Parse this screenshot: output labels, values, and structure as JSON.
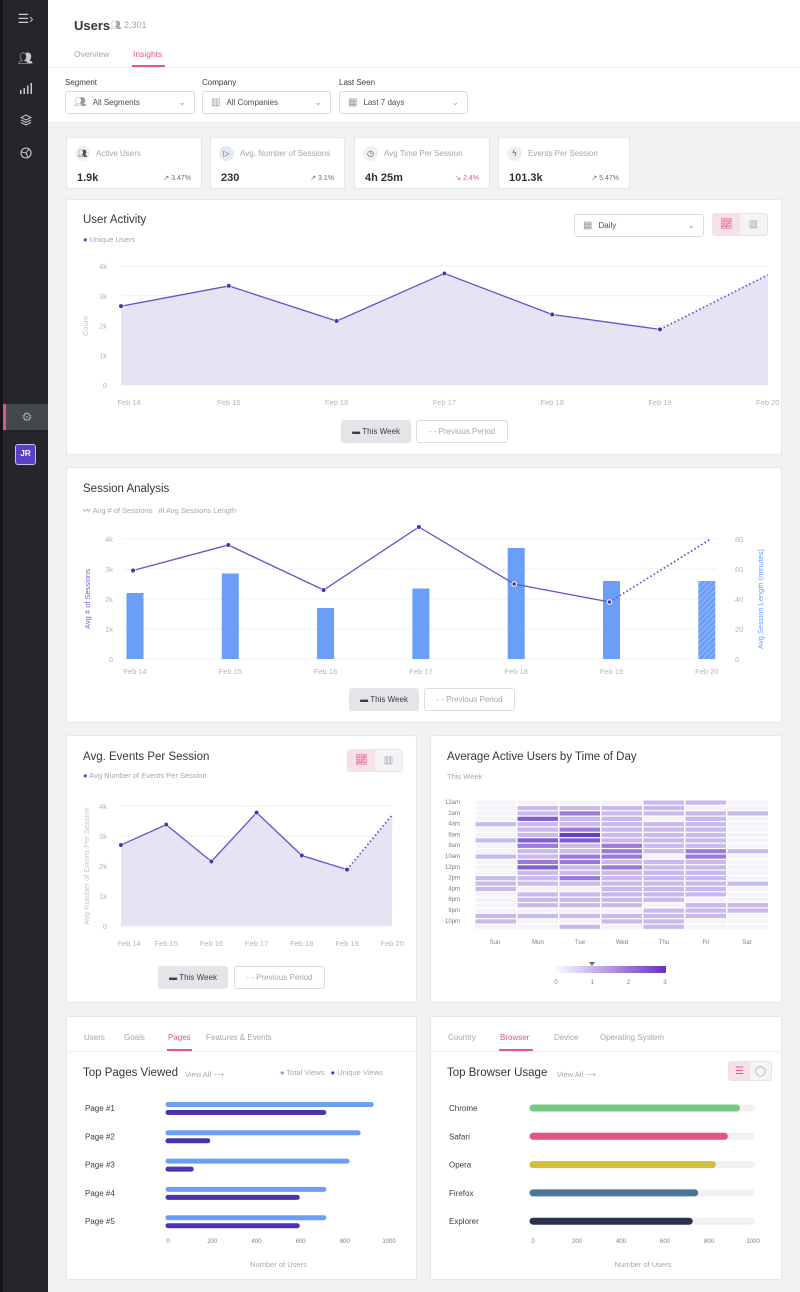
{
  "sidebar": {
    "items": [
      {
        "icon": "menu-expand-icon"
      },
      {
        "icon": "users-icon"
      },
      {
        "icon": "bar-chart-icon"
      },
      {
        "icon": "layers-icon"
      },
      {
        "icon": "dashboard-icon"
      }
    ],
    "settings_icon": "gear-icon",
    "avatar_initials": "JR"
  },
  "header": {
    "title": "Users",
    "user_count": "2,301",
    "tabs": [
      {
        "label": "Overview"
      },
      {
        "label": "Insights",
        "active": true
      }
    ]
  },
  "filters": [
    {
      "label": "Segment",
      "value": "All Segments",
      "icon": "users-icon"
    },
    {
      "label": "Company",
      "value": "All Companies",
      "icon": "building-icon"
    },
    {
      "label": "Last Seen",
      "value": "Last 7 days",
      "icon": "calendar-icon"
    }
  ],
  "kpis": [
    {
      "label": "Active Users",
      "value": "1.9k",
      "change": "3.47%",
      "trend": "up",
      "icon": "users-group-icon"
    },
    {
      "label": "Avg. Number of Sessions",
      "value": "230",
      "change": "3.1%",
      "trend": "up",
      "icon": "play-icon"
    },
    {
      "label": "Avg Time Per Session",
      "value": "4h 25m",
      "change": "2.4%",
      "trend": "down",
      "icon": "clock-icon"
    },
    {
      "label": "Events Per Session",
      "value": "101.3k",
      "change": "5.47%",
      "trend": "up",
      "icon": "lightning-icon"
    }
  ],
  "colors": {
    "accent": "#e0567f",
    "primary": "#5b3fc4",
    "bar_blue": "#6a9ef7",
    "area": "#e6e3f5"
  },
  "legend_buttons": {
    "this_week": "This Week",
    "previous_period": "Previous Period"
  },
  "chart_data": [
    {
      "type": "area",
      "title": "User Activity",
      "interval": "Daily",
      "ylabel": "Count",
      "legend": [
        "Unique Users"
      ],
      "categories": [
        "Feb 14",
        "Feb 15",
        "Feb 16",
        "Feb 17",
        "Feb 18",
        "Feb 19",
        "Feb 20"
      ],
      "yticks": [
        "0",
        "1k",
        "2k",
        "3k",
        "4k"
      ],
      "ylim": [
        0,
        4000
      ],
      "values": [
        2650,
        3330,
        2150,
        3750,
        2370,
        1870,
        3700
      ],
      "dashed_last_segment": true
    },
    {
      "type": "bar+line",
      "title": "Session Analysis",
      "legend": [
        "Avg # of Sessions",
        "Avg Sessions Length"
      ],
      "categories": [
        "Feb 14",
        "Feb 15",
        "Feb 16",
        "Feb 17",
        "Feb 18",
        "Feb 19",
        "Feb 20"
      ],
      "ylabel_left": "Avg # of Sessions",
      "ylabel_right": "Avg Session Length (minutes)",
      "yticks_left": [
        "0",
        "1k",
        "2k",
        "3k",
        "4k"
      ],
      "yticks_right": [
        "0",
        "20",
        "40",
        "60",
        "80"
      ],
      "ylim_left": [
        0,
        4000
      ],
      "ylim_right": [
        0,
        80
      ],
      "line_values": [
        2950,
        3800,
        2300,
        4400,
        2500,
        1900,
        4000
      ],
      "bar_values": [
        44,
        57,
        34,
        47,
        74,
        52,
        52
      ]
    },
    {
      "type": "area",
      "title": "Avg. Events Per Session",
      "ylabel": "Avg Number of Events Per Session",
      "legend": [
        "Avg Number of Events Per Session"
      ],
      "categories": [
        "Feb 14",
        "Feb 15",
        "Feb 16",
        "Feb 17",
        "Feb 18",
        "Feb 19",
        "Feb 20"
      ],
      "yticks": [
        "0",
        "1k",
        "2k",
        "3k",
        "4k"
      ],
      "ylim": [
        0,
        4000
      ],
      "values": [
        2700,
        3380,
        2150,
        3780,
        2350,
        1880,
        3700
      ],
      "dashed_last_segment": true
    },
    {
      "type": "heatmap",
      "title": "Average Active Users by Time of Day",
      "subtitle": "This Week",
      "days": [
        "Sun",
        "Mon",
        "Tue",
        "Wed",
        "Thu",
        "Fri",
        "Sat"
      ],
      "hour_labels": [
        "12am",
        "2am",
        "4am",
        "6am",
        "8am",
        "10am",
        "12pm",
        "2pm",
        "4pm",
        "6pm",
        "8pm",
        "10pm"
      ],
      "scale_ticks": [
        "0",
        "1",
        "2",
        "3"
      ],
      "values": [
        [
          0,
          0,
          0,
          0,
          1,
          0,
          0,
          1,
          0,
          0,
          1,
          0,
          0,
          0,
          1,
          1,
          1,
          0,
          0,
          0,
          0,
          1,
          1,
          0
        ],
        [
          0,
          1,
          1,
          2.5,
          1,
          1,
          1,
          2.5,
          2,
          1,
          1,
          2,
          2.5,
          1,
          1,
          1,
          0,
          1,
          1,
          1,
          0,
          1,
          0,
          0
        ],
        [
          0,
          1,
          2,
          1,
          1,
          2,
          3,
          2.5,
          1,
          1,
          2,
          2,
          1,
          1,
          2,
          1,
          0,
          1,
          1,
          1,
          0,
          1,
          0,
          1
        ],
        [
          0,
          1,
          1,
          1,
          1,
          1,
          1,
          1,
          2,
          2,
          2,
          1,
          2,
          1,
          1,
          1,
          1,
          1,
          1,
          1,
          0,
          1,
          1,
          0
        ],
        [
          1,
          1,
          1,
          0,
          1,
          1,
          1,
          1,
          1,
          1,
          0,
          1,
          1,
          1,
          1,
          1,
          1,
          1,
          1,
          0,
          1,
          1,
          1,
          1
        ],
        [
          1,
          0,
          1,
          1,
          1,
          1,
          1,
          1,
          1,
          2,
          2,
          1,
          1,
          1,
          1,
          1,
          1,
          1,
          0,
          1,
          1,
          1,
          0,
          0
        ],
        [
          0,
          0,
          1,
          0,
          0,
          0,
          0,
          0,
          0,
          1,
          0,
          0,
          0,
          0,
          0,
          1,
          0,
          0,
          0,
          1,
          1,
          0,
          0,
          0
        ]
      ]
    },
    {
      "type": "bar",
      "orientation": "horizontal",
      "title": "Top Pages Viewed",
      "view_all": "View All",
      "tabs": [
        "Users",
        "Goals",
        "Pages",
        "Features & Events"
      ],
      "active_tab": "Pages",
      "legend": [
        "Total Views",
        "Unique Views"
      ],
      "categories": [
        "Page #1",
        "Page #2",
        "Page #3",
        "Page #4",
        "Page #5"
      ],
      "series": [
        {
          "name": "Total Views",
          "values": [
            920,
            860,
            810,
            705,
            705
          ]
        },
        {
          "name": "Unique Views",
          "values": [
            705,
            180,
            105,
            585,
            585
          ]
        }
      ],
      "xticks": [
        "0",
        "200",
        "400",
        "600",
        "800",
        "1000"
      ],
      "xlim": [
        0,
        1000
      ],
      "xlabel": "Number of Users"
    },
    {
      "type": "bar",
      "orientation": "horizontal",
      "title": "Top Browser Usage",
      "view_all": "View All",
      "tabs": [
        "Country",
        "Browser",
        "Device",
        "Operating System"
      ],
      "active_tab": "Browser",
      "categories": [
        "Chrome",
        "Safari",
        "Opera",
        "Firefox",
        "Explorer"
      ],
      "values": [
        925,
        870,
        815,
        735,
        710
      ],
      "bar_colors": [
        "#76c983",
        "#e0567f",
        "#d4bf3a",
        "#4a7594",
        "#2b3250"
      ],
      "xticks": [
        "0",
        "200",
        "400",
        "600",
        "800",
        "1000"
      ],
      "xlim": [
        0,
        1000
      ],
      "xlabel": "Number of Users"
    }
  ]
}
